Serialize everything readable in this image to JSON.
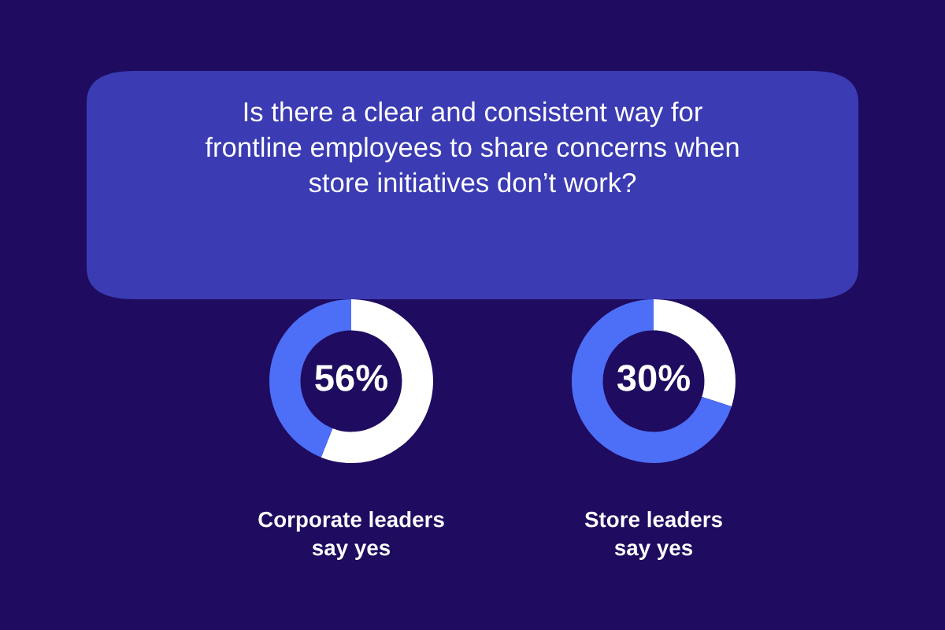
{
  "chart_data": [
    {
      "type": "donut",
      "title": "Is there a clear and consistent way for\nfrontline employees to share concerns when\nstore initiatives don’t work?",
      "xlabel": "Corporate leaders\nsay yes",
      "categories": [
        null,
        null
      ],
      "values": [
        56,
        44
      ],
      "colors": [
        "#ffffff",
        "#4d6ef7"
      ],
      "value_labels": [
        "56%",
        null
      ]
    },
    {
      "type": "donut",
      "xlabel": "Store leaders\nsay yes",
      "categories": [
        null,
        null
      ],
      "values": [
        30,
        70
      ],
      "colors": [
        "#ffffff",
        "#4d6ef7"
      ],
      "value_labels": [
        "30%",
        null
      ]
    }
  ]
}
